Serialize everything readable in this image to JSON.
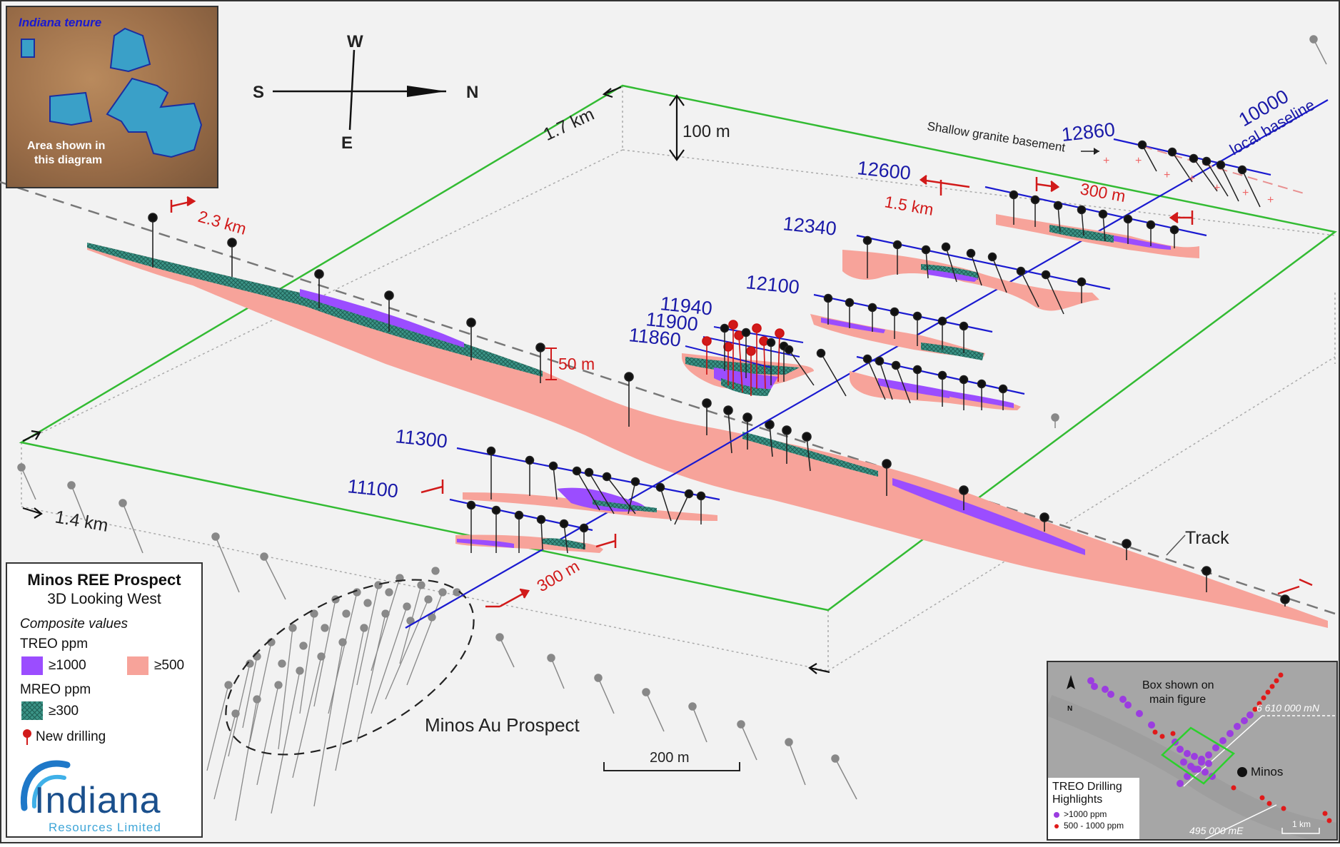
{
  "inset_tenure": {
    "tenure_label": "Indiana tenure",
    "area_label_line1": "Area shown in",
    "area_label_line2": "this diagram"
  },
  "compass": {
    "north": "N",
    "south": "S",
    "east": "E",
    "west": "W"
  },
  "dimensions": {
    "width": "1.7 km",
    "depth": "1.4 km",
    "height": "100 m",
    "interval": "50 m",
    "track_length": "2.3 km",
    "section_length_1": "1.5 km",
    "spacing_top": "300 m",
    "spacing_bottom": "300 m"
  },
  "annotations": {
    "granite": "Shallow granite basement",
    "baseline_number": "10000",
    "baseline_label": "local baseline",
    "track": "Track",
    "au_prospect": "Minos Au Prospect",
    "scale_bar": "200 m"
  },
  "sections": {
    "s12860": "12860",
    "s12600": "12600",
    "s12340": "12340",
    "s12100": "12100",
    "s11940": "11940",
    "s11900": "11900",
    "s11860": "11860",
    "s11300": "11300",
    "s11100": "11100"
  },
  "legend": {
    "title": "Minos REE Prospect",
    "subtitle": "3D Looking West",
    "composite": "Composite values",
    "treo_heading": "TREO ppm",
    "treo_high": "≥1000",
    "treo_low": "≥500",
    "mreo_heading": "MREO ppm",
    "mreo_value": "≥300",
    "new_drilling": "New drilling",
    "colors": {
      "treo_high": "#9b4dff",
      "treo_low": "#f7a39a",
      "mreo": "#3d9b8a"
    }
  },
  "logo": {
    "name": "Indiana",
    "sub": "Resources Limited"
  },
  "inset_location": {
    "box_line1": "Box shown on",
    "box_line2": "main figure",
    "northing": "6 610 000 mN",
    "easting": "495 000 mE",
    "minos": "Minos",
    "scale": "1 km",
    "north": "N",
    "highlights_line1": "TREO Drilling",
    "highlights_line2": "Highlights",
    "legend_high": ">1000 ppm",
    "legend_low": "500 - 1000 ppm"
  }
}
